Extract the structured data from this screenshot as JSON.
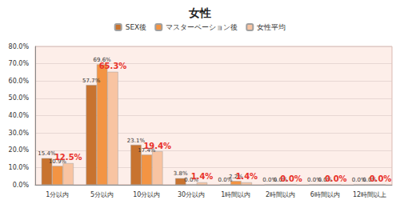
{
  "chart_data": {
    "type": "bar",
    "title": "女性",
    "categories": [
      "1分以内",
      "5分以内",
      "10分以内",
      "30分以内",
      "1時間以内",
      "2時間以内",
      "6時間以内",
      "12時間以上"
    ],
    "series": [
      {
        "name": "SEX後",
        "color": "#c8732f",
        "values": [
          15.4,
          57.7,
          23.1,
          3.8,
          0.0,
          0.0,
          0.0,
          0.0
        ],
        "value_labels": [
          "15.4%",
          "57.7%",
          "23.1%",
          "3.8%",
          "0.0%",
          "0.0%",
          "0.0%",
          "0.0%"
        ]
      },
      {
        "name": "マスターベーション後",
        "color": "#f39443",
        "values": [
          10.9,
          69.6,
          17.4,
          0.0,
          2.2,
          0.0,
          0.0,
          0.0
        ],
        "value_labels": [
          "10.9%",
          "69.6%",
          "17.4%",
          "0.0%",
          "2.2%",
          "0.0%",
          "0.0%",
          "0.0%"
        ]
      },
      {
        "name": "女性平均",
        "color": "#f8c4a2",
        "values": [
          12.5,
          65.3,
          19.4,
          1.4,
          1.4,
          0.0,
          0.0,
          0.0
        ],
        "value_labels": [
          "12.5%",
          "65.3%",
          "19.4%",
          "1.4%",
          "1.4%",
          "0.0%",
          "0.0%",
          "0.0%"
        ]
      }
    ],
    "ylim": [
      0,
      80
    ],
    "yticks": [
      {
        "value": 0,
        "label": "0.0%"
      },
      {
        "value": 10,
        "label": "10.0%"
      },
      {
        "value": 20,
        "label": "20.0%"
      },
      {
        "value": 30,
        "label": "30.0%"
      },
      {
        "value": 40,
        "label": "40.0%"
      },
      {
        "value": 50,
        "label": "50.0%"
      },
      {
        "value": 60,
        "label": "60.0%"
      },
      {
        "value": 70,
        "label": "70.0%"
      },
      {
        "value": 80,
        "label": "80.0%"
      }
    ],
    "grid": true,
    "legend": "top",
    "data_labels": true
  }
}
